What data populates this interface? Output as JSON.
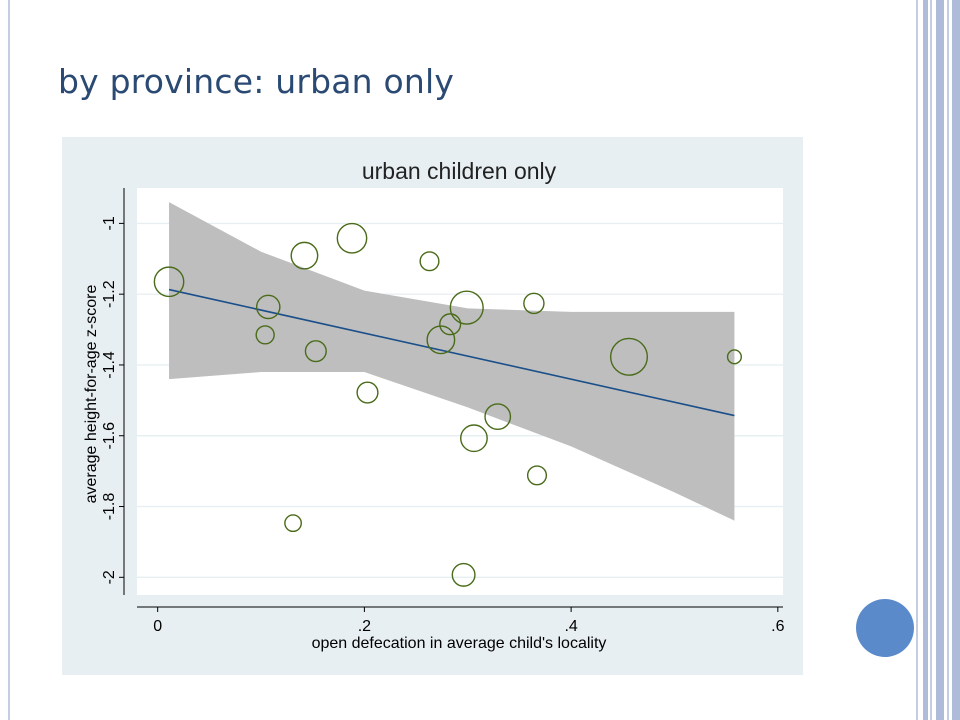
{
  "slide": {
    "title": "by province: urban only"
  },
  "colors": {
    "title": "#2a4a73",
    "chart_background": "#e8eff2",
    "plot_background": "#ffffff",
    "grid": "#e8eff2",
    "confidence_band": "#bebebe",
    "fit_line": "#1a4f8a",
    "marker_outline": "#4a6b1a",
    "nav_circle": "#5b8acb"
  },
  "chart_data": {
    "type": "scatter",
    "title": "urban children only",
    "xlabel": "open defecation in average child's locality",
    "ylabel": "average height-for-age z-score",
    "xlim": [
      -0.02,
      0.605
    ],
    "ylim": [
      -2.05,
      -0.9
    ],
    "xticks": [
      0,
      0.2,
      0.4,
      0.6
    ],
    "xtick_labels": [
      "0",
      ".2",
      ".4",
      ".6"
    ],
    "yticks": [
      -2,
      -1.8,
      -1.6,
      -1.4,
      -1.2,
      -1
    ],
    "ytick_labels": [
      "-2",
      "-1.8",
      "-1.6",
      "-1.4",
      "-1.2",
      "-1"
    ],
    "grid": true,
    "marker": "hollow circle, size proportional to weight",
    "points": [
      {
        "x": 0.011,
        "y": -1.165,
        "w": 3.2
      },
      {
        "x": 0.107,
        "y": -1.236,
        "w": 2.0
      },
      {
        "x": 0.104,
        "y": -1.315,
        "w": 1.2
      },
      {
        "x": 0.142,
        "y": -1.091,
        "w": 2.6
      },
      {
        "x": 0.153,
        "y": -1.361,
        "w": 1.6
      },
      {
        "x": 0.131,
        "y": -1.847,
        "w": 1.0
      },
      {
        "x": 0.188,
        "y": -1.042,
        "w": 3.2
      },
      {
        "x": 0.203,
        "y": -1.478,
        "w": 1.6
      },
      {
        "x": 0.263,
        "y": -1.107,
        "w": 1.3
      },
      {
        "x": 0.283,
        "y": -1.285,
        "w": 1.6
      },
      {
        "x": 0.299,
        "y": -1.238,
        "w": 4.0
      },
      {
        "x": 0.274,
        "y": -1.329,
        "w": 2.8
      },
      {
        "x": 0.306,
        "y": -1.607,
        "w": 2.6
      },
      {
        "x": 0.329,
        "y": -1.546,
        "w": 2.4
      },
      {
        "x": 0.296,
        "y": -1.993,
        "w": 1.9
      },
      {
        "x": 0.364,
        "y": -1.226,
        "w": 1.5
      },
      {
        "x": 0.367,
        "y": -1.712,
        "w": 1.3
      },
      {
        "x": 0.456,
        "y": -1.377,
        "w": 5.0
      },
      {
        "x": 0.558,
        "y": -1.377,
        "w": 0.7
      }
    ],
    "fit_line": {
      "x": [
        0.011,
        0.558
      ],
      "y": [
        -1.187,
        -1.543
      ]
    },
    "confidence_band": {
      "x": [
        0.011,
        0.1,
        0.2,
        0.3,
        0.4,
        0.5,
        0.558
      ],
      "upper": [
        -0.94,
        -1.08,
        -1.19,
        -1.24,
        -1.25,
        -1.25,
        -1.25
      ],
      "lower": [
        -1.44,
        -1.42,
        -1.42,
        -1.52,
        -1.63,
        -1.76,
        -1.84
      ]
    }
  }
}
